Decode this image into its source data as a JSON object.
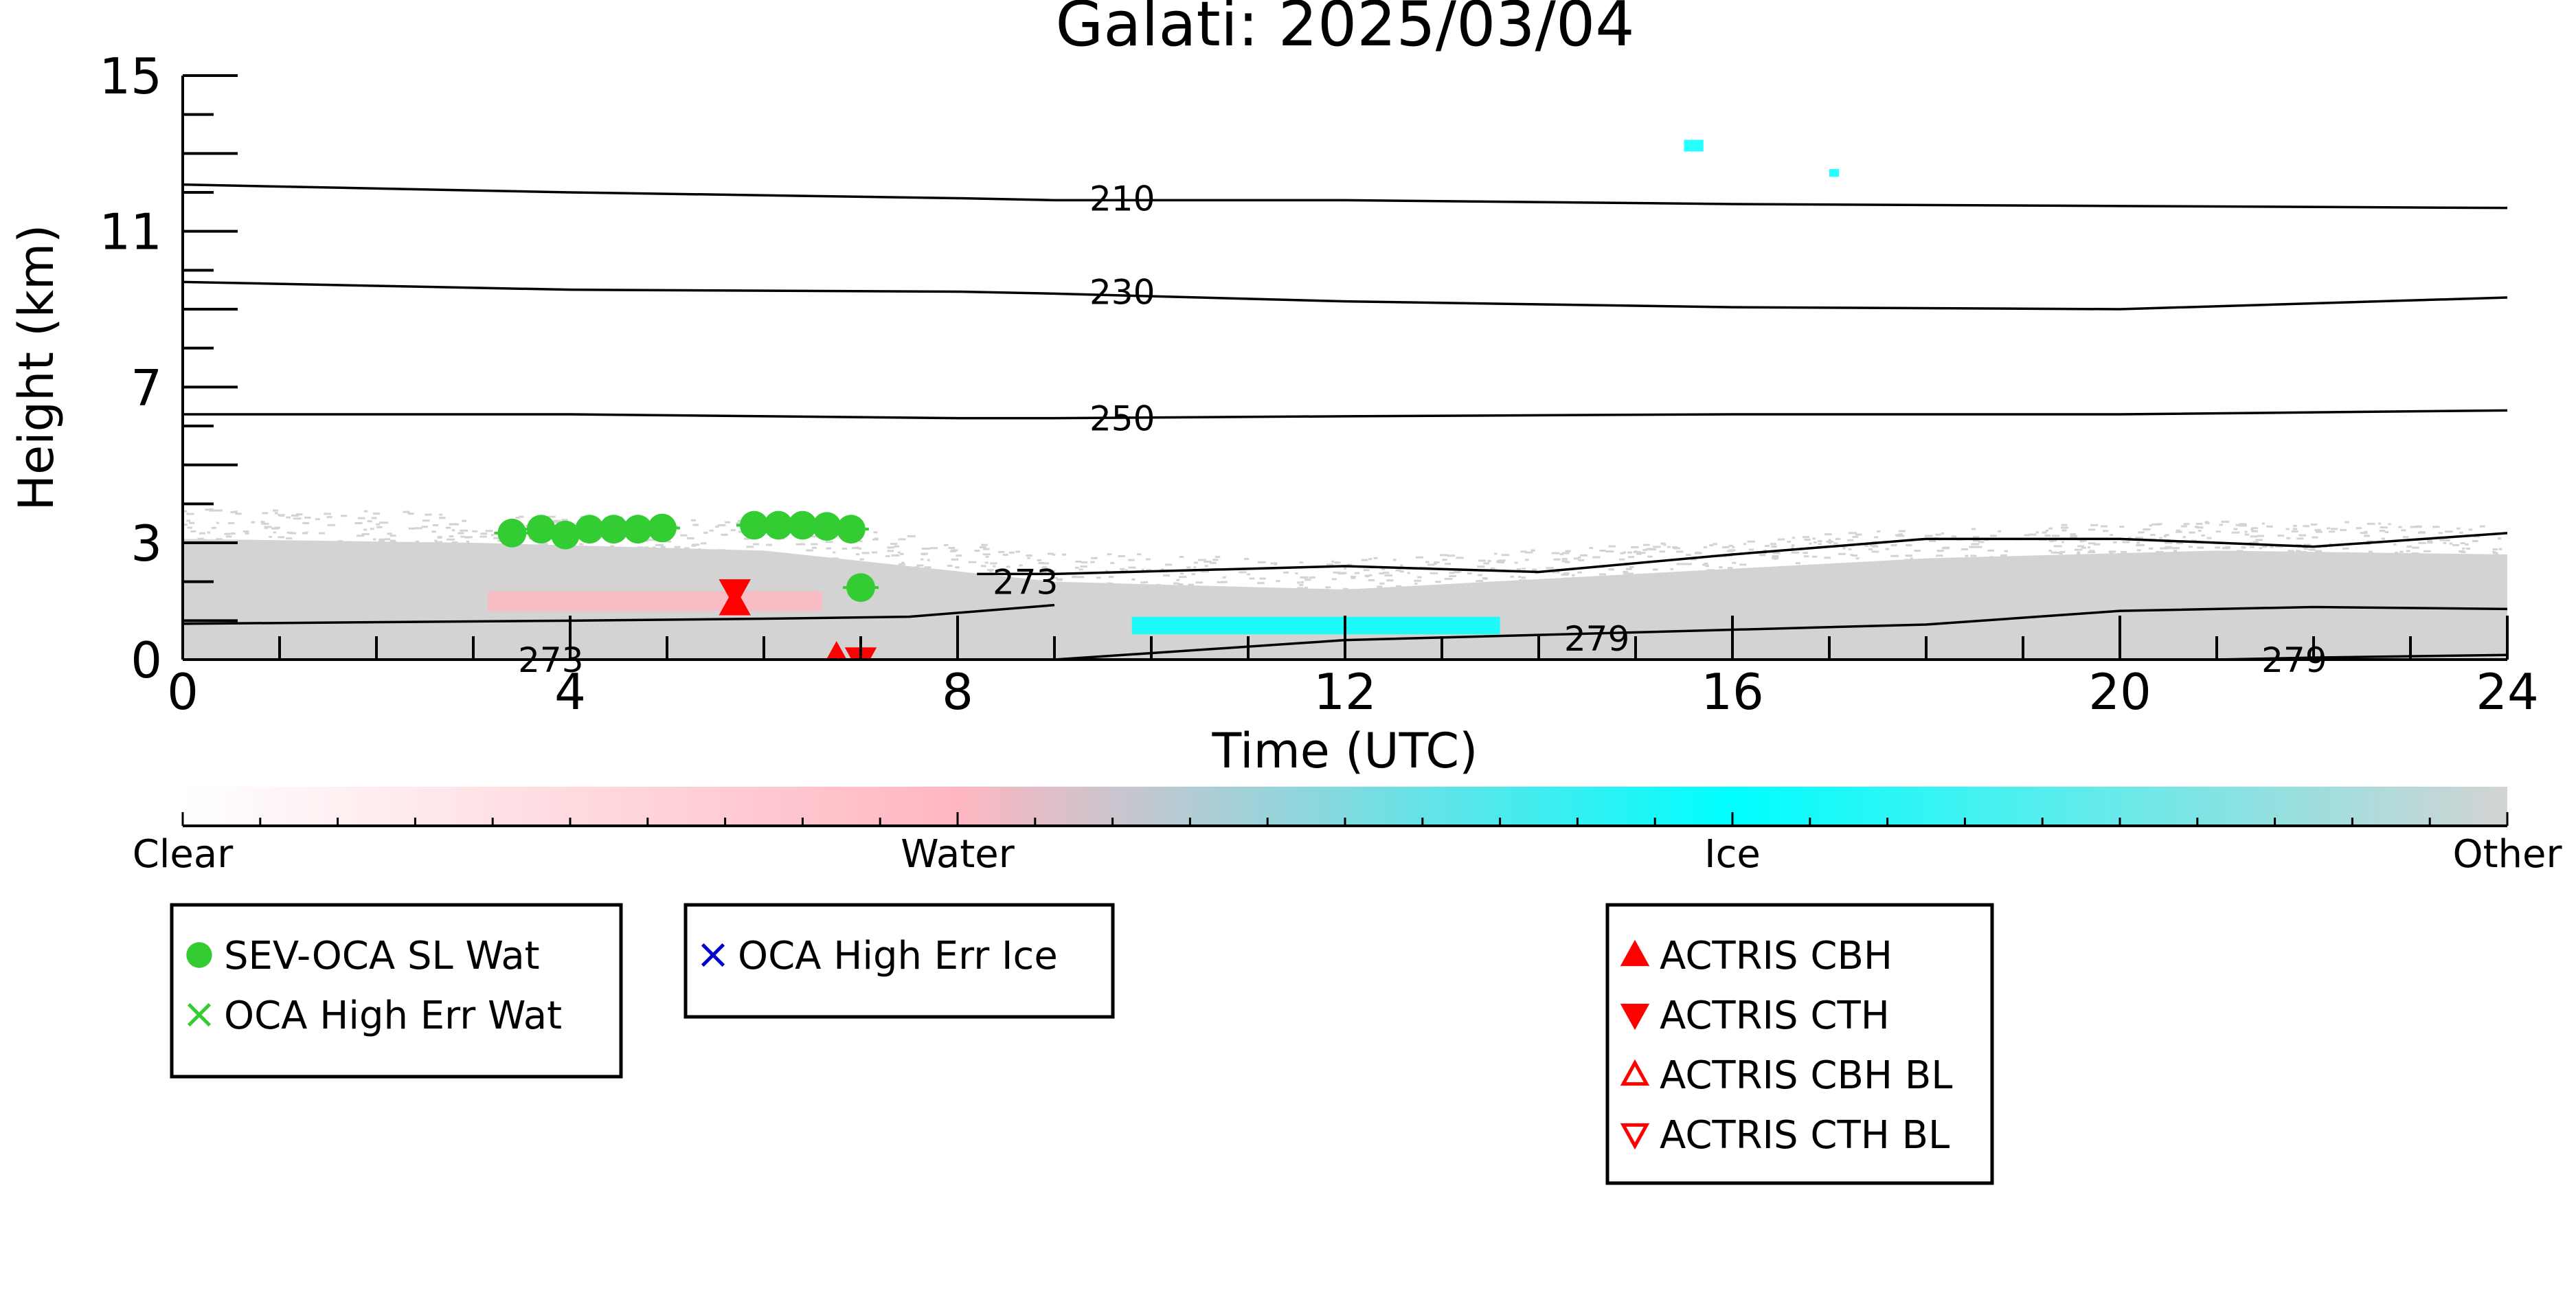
{
  "chart_data": {
    "type": "heatmap",
    "title": "Galati: 2025/03/04",
    "xlabel": "Time (UTC)",
    "ylabel": "Height (km)",
    "xlim": [
      0,
      24
    ],
    "ylim": [
      0,
      15
    ],
    "xticks": [
      0,
      4,
      8,
      12,
      16,
      20,
      24
    ],
    "yticks": [
      0,
      3,
      7,
      11,
      15
    ],
    "colorbar": {
      "labels": [
        "Clear",
        "Water",
        "Ice",
        "Other"
      ],
      "colors": [
        "#ffffff",
        "#ffb6c1",
        "#00ffff",
        "#d3d3d3"
      ]
    },
    "contours": [
      {
        "label": "210",
        "x": [
          0,
          4,
          8,
          9,
          12,
          16,
          20,
          24
        ],
        "y": [
          12.2,
          12.0,
          11.85,
          11.8,
          11.8,
          11.7,
          11.65,
          11.6
        ]
      },
      {
        "label": "230",
        "x": [
          0,
          4,
          8,
          9,
          12,
          16,
          20,
          24
        ],
        "y": [
          9.7,
          9.5,
          9.45,
          9.4,
          9.2,
          9.05,
          9.0,
          9.3
        ]
      },
      {
        "label": "250",
        "x": [
          0,
          4,
          8,
          9,
          12,
          16,
          20,
          24
        ],
        "y": [
          6.3,
          6.3,
          6.2,
          6.2,
          6.25,
          6.3,
          6.3,
          6.4
        ]
      },
      {
        "label": "273",
        "x": [
          8.2,
          9.0,
          12.0,
          14.0,
          16.0,
          18.0,
          20.0,
          22.0,
          24.0
        ],
        "y": [
          2.2,
          2.2,
          2.4,
          2.25,
          2.7,
          3.1,
          3.1,
          2.9,
          3.25
        ]
      },
      {
        "label": "273",
        "x": [
          0,
          4,
          6,
          7.5,
          9.0
        ],
        "y": [
          0.92,
          1.0,
          1.05,
          1.1,
          1.4
        ]
      },
      {
        "label": "279",
        "x": [
          9.0,
          12.0,
          15.0,
          18.0,
          20.0,
          22.0,
          24.0
        ],
        "y": [
          0.0,
          0.5,
          0.7,
          0.9,
          1.25,
          1.35,
          1.3
        ]
      },
      {
        "label": "279",
        "x": [
          21.0,
          22.0,
          24.0
        ],
        "y": [
          0.0,
          0.05,
          0.12
        ]
      }
    ],
    "contour_labels": [
      {
        "text": "210",
        "x": 9.7,
        "y": 11.85
      },
      {
        "text": "230",
        "x": 9.7,
        "y": 9.45
      },
      {
        "text": "250",
        "x": 9.7,
        "y": 6.2
      },
      {
        "text": "273",
        "x": 8.7,
        "y": 2.0
      },
      {
        "text": "273",
        "x": 3.8,
        "y": 0.0
      },
      {
        "text": "279",
        "x": 14.6,
        "y": 0.55
      },
      {
        "text": "279",
        "x": 21.8,
        "y": 0.0
      }
    ],
    "point_series": [
      {
        "name": "SEV-OCA SL Wat",
        "marker": "filled-circle",
        "color": "#33cc33",
        "x": [
          3.4,
          3.7,
          3.95,
          4.2,
          4.45,
          4.7,
          4.95,
          5.9,
          6.15,
          6.4,
          6.65,
          6.9,
          7.0
        ],
        "y": [
          3.25,
          3.35,
          3.2,
          3.35,
          3.35,
          3.35,
          3.38,
          3.45,
          3.45,
          3.45,
          3.42,
          3.35,
          1.85
        ]
      },
      {
        "name": "OCA High Err Wat",
        "marker": "x",
        "color": "#33cc33",
        "x": [],
        "y": []
      },
      {
        "name": "OCA High Err Ice",
        "marker": "x",
        "color": "#0000cc",
        "x": [],
        "y": []
      },
      {
        "name": "ACTRIS CBH",
        "marker": "filled-triangle-up",
        "color": "#ff0000",
        "x": [
          5.7,
          6.75
        ],
        "y": [
          1.45,
          0.05
        ]
      },
      {
        "name": "ACTRIS CTH",
        "marker": "filled-triangle-down",
        "color": "#ff0000",
        "x": [
          5.7,
          7.0
        ],
        "y": [
          1.75,
          0.0
        ]
      },
      {
        "name": "ACTRIS CBH BL",
        "marker": "open-triangle-up",
        "color": "#ff0000",
        "x": [],
        "y": []
      },
      {
        "name": "ACTRIS CTH BL",
        "marker": "open-triangle-down",
        "color": "#ff0000",
        "x": [],
        "y": []
      }
    ],
    "cloud_regions": [
      {
        "class": "Other",
        "x0": 0.0,
        "x1": 24.0,
        "y_top": [
          3.9,
          3.8,
          3.6,
          2.8,
          2.6,
          3.0,
          3.4,
          3.6,
          3.5
        ]
      },
      {
        "class": "Water",
        "x0": 3.15,
        "x1": 6.6,
        "y_bottom": 1.25,
        "y_top": 1.75
      },
      {
        "class": "Ice",
        "x0": 9.8,
        "x1": 13.6,
        "y_bottom": 0.65,
        "y_top": 1.1
      },
      {
        "class": "Ice",
        "x0": 15.5,
        "x1": 15.7,
        "y_bottom": 13.05,
        "y_top": 13.35
      },
      {
        "class": "Ice",
        "x0": 17.0,
        "x1": 17.1,
        "y_bottom": 12.4,
        "y_top": 12.6
      }
    ],
    "legend_groups": [
      {
        "entries": [
          "SEV-OCA SL Wat",
          "OCA High Err Wat"
        ]
      },
      {
        "entries": [
          "OCA High Err Ice"
        ]
      },
      {
        "entries": [
          "ACTRIS CBH",
          "ACTRIS CTH",
          "ACTRIS CBH BL",
          "ACTRIS CTH BL"
        ]
      }
    ]
  }
}
